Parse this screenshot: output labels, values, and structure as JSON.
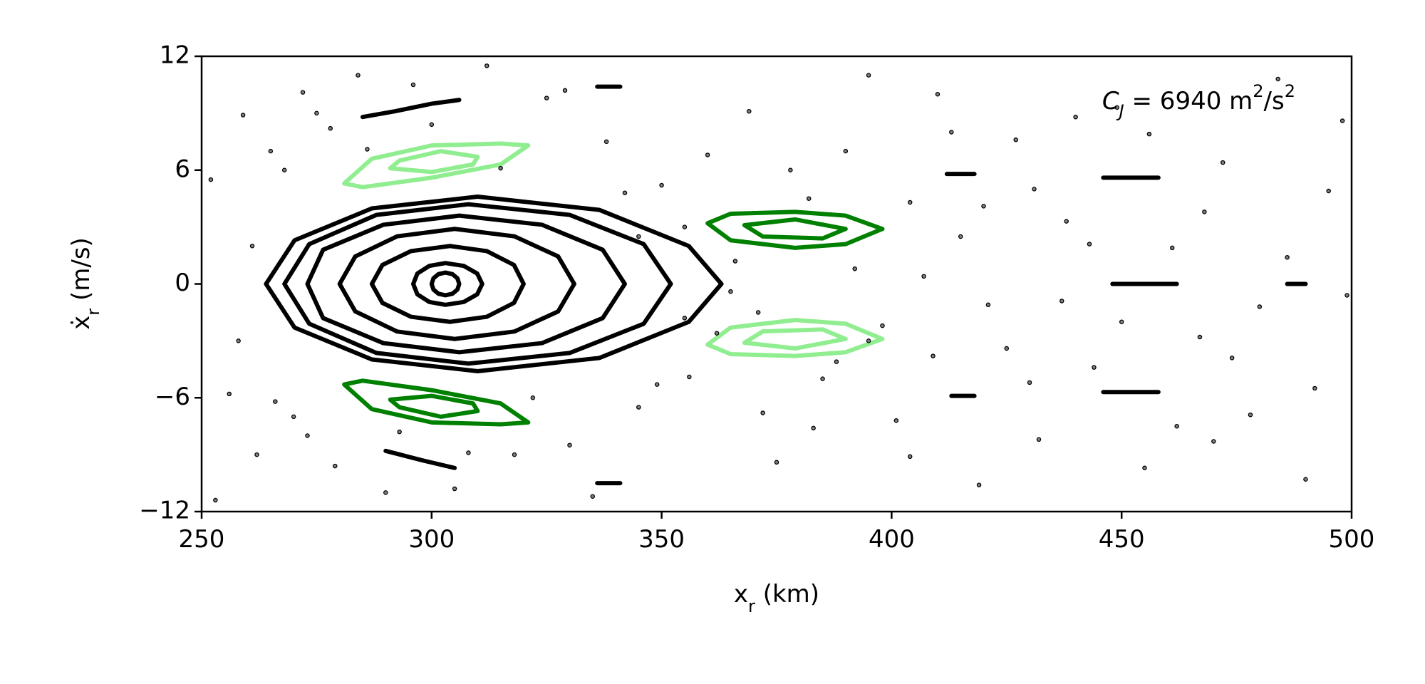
{
  "chart_data": {
    "type": "scatter",
    "xlabel": {
      "parts": [
        "x",
        "r",
        " (km)"
      ]
    },
    "ylabel": {
      "parts": [
        "ẋ",
        "r",
        " (m/s)"
      ]
    },
    "annotation": {
      "parts": [
        "C",
        "J",
        " = 6940 m",
        "2",
        "/s",
        "2"
      ]
    },
    "xlim": [
      250,
      500
    ],
    "ylim": [
      -12,
      12
    ],
    "xticks": [
      250,
      300,
      350,
      400,
      450,
      500
    ],
    "yticks": [
      {
        "value": -12,
        "label": "−12"
      },
      {
        "value": -6,
        "label": "−6"
      },
      0,
      6,
      12
    ],
    "series": [
      {
        "kind": "line",
        "closed": true,
        "color": "#000000",
        "x": [
          306,
          305.6,
          304.5,
          303,
          301.5,
          300.4,
          300,
          300.4,
          301.5,
          303,
          304.5,
          305.6
        ],
        "y": [
          0,
          0.3,
          0.52,
          0.6,
          0.52,
          0.3,
          0,
          -0.3,
          -0.52,
          -0.6,
          -0.52,
          -0.3
        ]
      },
      {
        "kind": "line",
        "closed": true,
        "color": "#000000",
        "x": [
          311,
          309.9,
          307,
          303,
          299.5,
          296.9,
          296,
          296.9,
          299.5,
          303,
          307,
          309.9
        ],
        "y": [
          0,
          0.55,
          0.95,
          1.1,
          0.95,
          0.55,
          0,
          -0.55,
          -0.95,
          -1.1,
          -0.95,
          -0.55
        ]
      },
      {
        "kind": "line",
        "closed": true,
        "color": "#000000",
        "x": [
          320,
          317.9,
          312,
          304,
          295.5,
          289.3,
          287,
          289.3,
          295.5,
          304,
          312,
          317.9
        ],
        "y": [
          0,
          1,
          1.73,
          2,
          1.73,
          1,
          0,
          -1,
          -1.73,
          -2,
          -1.73,
          -1
        ]
      },
      {
        "kind": "line",
        "closed": true,
        "color": "#000000",
        "x": [
          331,
          327.5,
          318,
          305,
          292.5,
          283.4,
          280,
          283.4,
          292.5,
          305,
          318,
          327.5
        ],
        "y": [
          0,
          1.45,
          2.51,
          2.9,
          2.51,
          1.45,
          0,
          -1.45,
          -2.51,
          -2.9,
          -2.51,
          -1.45
        ]
      },
      {
        "kind": "line",
        "closed": true,
        "color": "#000000",
        "x": [
          342,
          337.2,
          324,
          306,
          289.5,
          276.4,
          273,
          276.4,
          289.5,
          306,
          324,
          337.2
        ],
        "y": [
          0,
          1.8,
          3.12,
          3.6,
          3.12,
          1.8,
          0,
          -1.8,
          -3.12,
          -3.6,
          -3.12,
          -1.8
        ]
      },
      {
        "kind": "line",
        "closed": true,
        "color": "#000000",
        "x": [
          352,
          346.1,
          330,
          308,
          288,
          273.4,
          268,
          273.4,
          288,
          308,
          330,
          346.1
        ],
        "y": [
          0,
          2.1,
          3.64,
          4.2,
          3.64,
          2.1,
          0,
          -2.1,
          -3.64,
          -4.2,
          -3.64,
          -2.1
        ]
      },
      {
        "kind": "line",
        "closed": true,
        "color": "#000000",
        "x": [
          363,
          355.9,
          336.5,
          310,
          287,
          270.2,
          264,
          270.2,
          287,
          310,
          336.5,
          355.9
        ],
        "y": [
          0,
          2.0,
          3.9,
          4.6,
          3.98,
          2.3,
          0,
          -2.3,
          -3.98,
          -4.6,
          -3.9,
          -2.0
        ]
      },
      {
        "kind": "line",
        "closed": true,
        "color": "#90ee90",
        "x": [
          321,
          315,
          300,
          287,
          281,
          285,
          300,
          315
        ],
        "y": [
          7.3,
          7.4,
          7.3,
          6.6,
          5.3,
          5.1,
          5.6,
          6.3
        ]
      },
      {
        "kind": "line",
        "closed": true,
        "color": "#90ee90",
        "x": [
          310,
          302,
          293,
          291,
          300,
          309
        ],
        "y": [
          6.7,
          7.0,
          6.5,
          6.1,
          5.9,
          6.3
        ]
      },
      {
        "kind": "line",
        "closed": true,
        "color": "#008000",
        "x": [
          321,
          315,
          300,
          287,
          281,
          285,
          300,
          315
        ],
        "y": [
          -7.3,
          -7.4,
          -7.3,
          -6.6,
          -5.3,
          -5.1,
          -5.6,
          -6.3
        ]
      },
      {
        "kind": "line",
        "closed": true,
        "color": "#008000",
        "x": [
          310,
          302,
          293,
          291,
          300,
          309
        ],
        "y": [
          -6.7,
          -7.0,
          -6.5,
          -6.1,
          -5.9,
          -6.3
        ]
      },
      {
        "kind": "line",
        "closed": true,
        "color": "#008000",
        "x": [
          398,
          390,
          379,
          365,
          360,
          365,
          379,
          390
        ],
        "y": [
          2.9,
          3.6,
          3.8,
          3.7,
          3.2,
          2.3,
          1.9,
          2.1
        ]
      },
      {
        "kind": "line",
        "closed": true,
        "color": "#008000",
        "x": [
          390,
          379,
          368,
          372,
          385
        ],
        "y": [
          2.9,
          3.4,
          3.1,
          2.5,
          2.4
        ]
      },
      {
        "kind": "line",
        "closed": true,
        "color": "#90ee90",
        "x": [
          398,
          390,
          379,
          365,
          360,
          365,
          379,
          390
        ],
        "y": [
          -2.9,
          -3.6,
          -3.8,
          -3.7,
          -3.2,
          -2.3,
          -1.9,
          -2.1
        ]
      },
      {
        "kind": "line",
        "closed": true,
        "color": "#90ee90",
        "x": [
          390,
          379,
          368,
          372,
          385
        ],
        "y": [
          -2.9,
          -3.4,
          -3.1,
          -2.5,
          -2.4
        ]
      },
      {
        "kind": "line",
        "closed": false,
        "color": "#000000",
        "x": [
          285,
          292,
          300,
          306
        ],
        "y": [
          8.8,
          9.1,
          9.5,
          9.7
        ]
      },
      {
        "kind": "line",
        "closed": false,
        "color": "#000000",
        "x": [
          290,
          298,
          305
        ],
        "y": [
          -8.8,
          -9.3,
          -9.7
        ]
      },
      {
        "kind": "line",
        "closed": false,
        "color": "#000000",
        "x": [
          336,
          341
        ],
        "y": [
          10.4,
          10.4
        ]
      },
      {
        "kind": "line",
        "closed": false,
        "color": "#000000",
        "x": [
          336,
          341
        ],
        "y": [
          -10.5,
          -10.5
        ]
      },
      {
        "kind": "line",
        "closed": false,
        "color": "#000000",
        "x": [
          412,
          418
        ],
        "y": [
          5.8,
          5.8
        ]
      },
      {
        "kind": "line",
        "closed": false,
        "color": "#000000",
        "x": [
          413,
          418
        ],
        "y": [
          -5.9,
          -5.9
        ]
      },
      {
        "kind": "line",
        "closed": false,
        "color": "#000000",
        "x": [
          446,
          458
        ],
        "y": [
          5.6,
          5.6
        ]
      },
      {
        "kind": "line",
        "closed": false,
        "color": "#000000",
        "x": [
          446,
          458
        ],
        "y": [
          -5.7,
          -5.7
        ]
      },
      {
        "kind": "line",
        "closed": false,
        "color": "#000000",
        "x": [
          448,
          462
        ],
        "y": [
          0,
          0
        ]
      },
      {
        "kind": "line",
        "closed": false,
        "color": "#000000",
        "x": [
          486,
          490
        ],
        "y": [
          0,
          0
        ]
      },
      {
        "kind": "points",
        "color": "#808080",
        "x": [
          252,
          258,
          261,
          265,
          270,
          275,
          262,
          268,
          256,
          273,
          278,
          284,
          290,
          296,
          305,
          312,
          318,
          325,
          330,
          338,
          345,
          350,
          356,
          360,
          366,
          371,
          378,
          385,
          392,
          398,
          404,
          409,
          415,
          421,
          427,
          432,
          438,
          444,
          449,
          455,
          461,
          467,
          472,
          478,
          484,
          490,
          495,
          499,
          253,
          259,
          266,
          272,
          279,
          286,
          293,
          300,
          308,
          315,
          322,
          329,
          335,
          342,
          349,
          355,
          362,
          369,
          375,
          382,
          388,
          395,
          401,
          407,
          413,
          419,
          425,
          431,
          437,
          443,
          450,
          456,
          462,
          468,
          474,
          480,
          486,
          492,
          498,
          345,
          355,
          365,
          372,
          383,
          390,
          395,
          404,
          410,
          420,
          430,
          440,
          470
        ],
        "y": [
          5.5,
          -3,
          2,
          7,
          -7,
          9,
          -9,
          6,
          -5.8,
          -8,
          8.2,
          11,
          -11,
          10.5,
          -10.8,
          11.5,
          -9,
          9.8,
          -8.5,
          7.5,
          -6.5,
          5.2,
          -4.9,
          6.8,
          1.2,
          -1.5,
          6,
          -5,
          0.8,
          -2.2,
          4.3,
          -3.8,
          2.5,
          -1.1,
          7.6,
          -8.2,
          3.3,
          -4.4,
          9.3,
          -9.7,
          1.9,
          -2.8,
          6.4,
          -6.9,
          10.8,
          -10.3,
          4.9,
          -0.6,
          -11.4,
          8.9,
          -6.2,
          10.1,
          -9.6,
          7.1,
          -7.8,
          8.4,
          -8.9,
          6.1,
          -6.0,
          10.2,
          -11.2,
          4.8,
          -5.3,
          3.0,
          -2.6,
          9.1,
          -9.4,
          4.5,
          -4.1,
          11.0,
          -7.2,
          0.4,
          8.0,
          -10.6,
          -3.4,
          5.0,
          -0.9,
          2.1,
          -2.0,
          7.9,
          -7.5,
          3.8,
          -3.9,
          -1.2,
          1.4,
          -5.5,
          8.6,
          2.5,
          -1.8,
          -0.4,
          -6.8,
          -7.6,
          7.0,
          -3.0,
          -9.1,
          10.0,
          4.1,
          -5.2,
          8.8,
          -8.3
        ]
      }
    ]
  }
}
